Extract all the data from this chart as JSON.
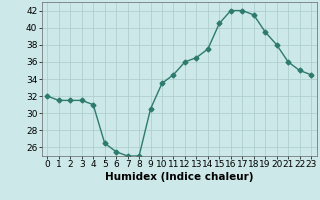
{
  "x": [
    0,
    1,
    2,
    3,
    4,
    5,
    6,
    7,
    8,
    9,
    10,
    11,
    12,
    13,
    14,
    15,
    16,
    17,
    18,
    19,
    20,
    21,
    22,
    23
  ],
  "y": [
    32,
    31.5,
    31.5,
    31.5,
    31,
    26.5,
    25.5,
    25,
    25,
    30.5,
    33.5,
    34.5,
    36,
    36.5,
    37.5,
    40.5,
    42,
    42,
    41.5,
    39.5,
    38,
    36,
    35,
    34.5
  ],
  "line_color": "#2d7a6e",
  "marker": "D",
  "marker_size": 2.5,
  "bg_color": "#cce8e8",
  "grid_color": "#aacccc",
  "xlabel": "Humidex (Indice chaleur)",
  "ylim": [
    25,
    43
  ],
  "xlim": [
    -0.5,
    23.5
  ],
  "yticks": [
    26,
    28,
    30,
    32,
    34,
    36,
    38,
    40,
    42
  ],
  "xtick_labels": [
    "0",
    "1",
    "2",
    "3",
    "4",
    "5",
    "6",
    "7",
    "8",
    "9",
    "10",
    "11",
    "12",
    "13",
    "14",
    "15",
    "16",
    "17",
    "18",
    "19",
    "20",
    "21",
    "22",
    "23"
  ],
  "label_fontsize": 7.5,
  "tick_fontsize": 6.5
}
